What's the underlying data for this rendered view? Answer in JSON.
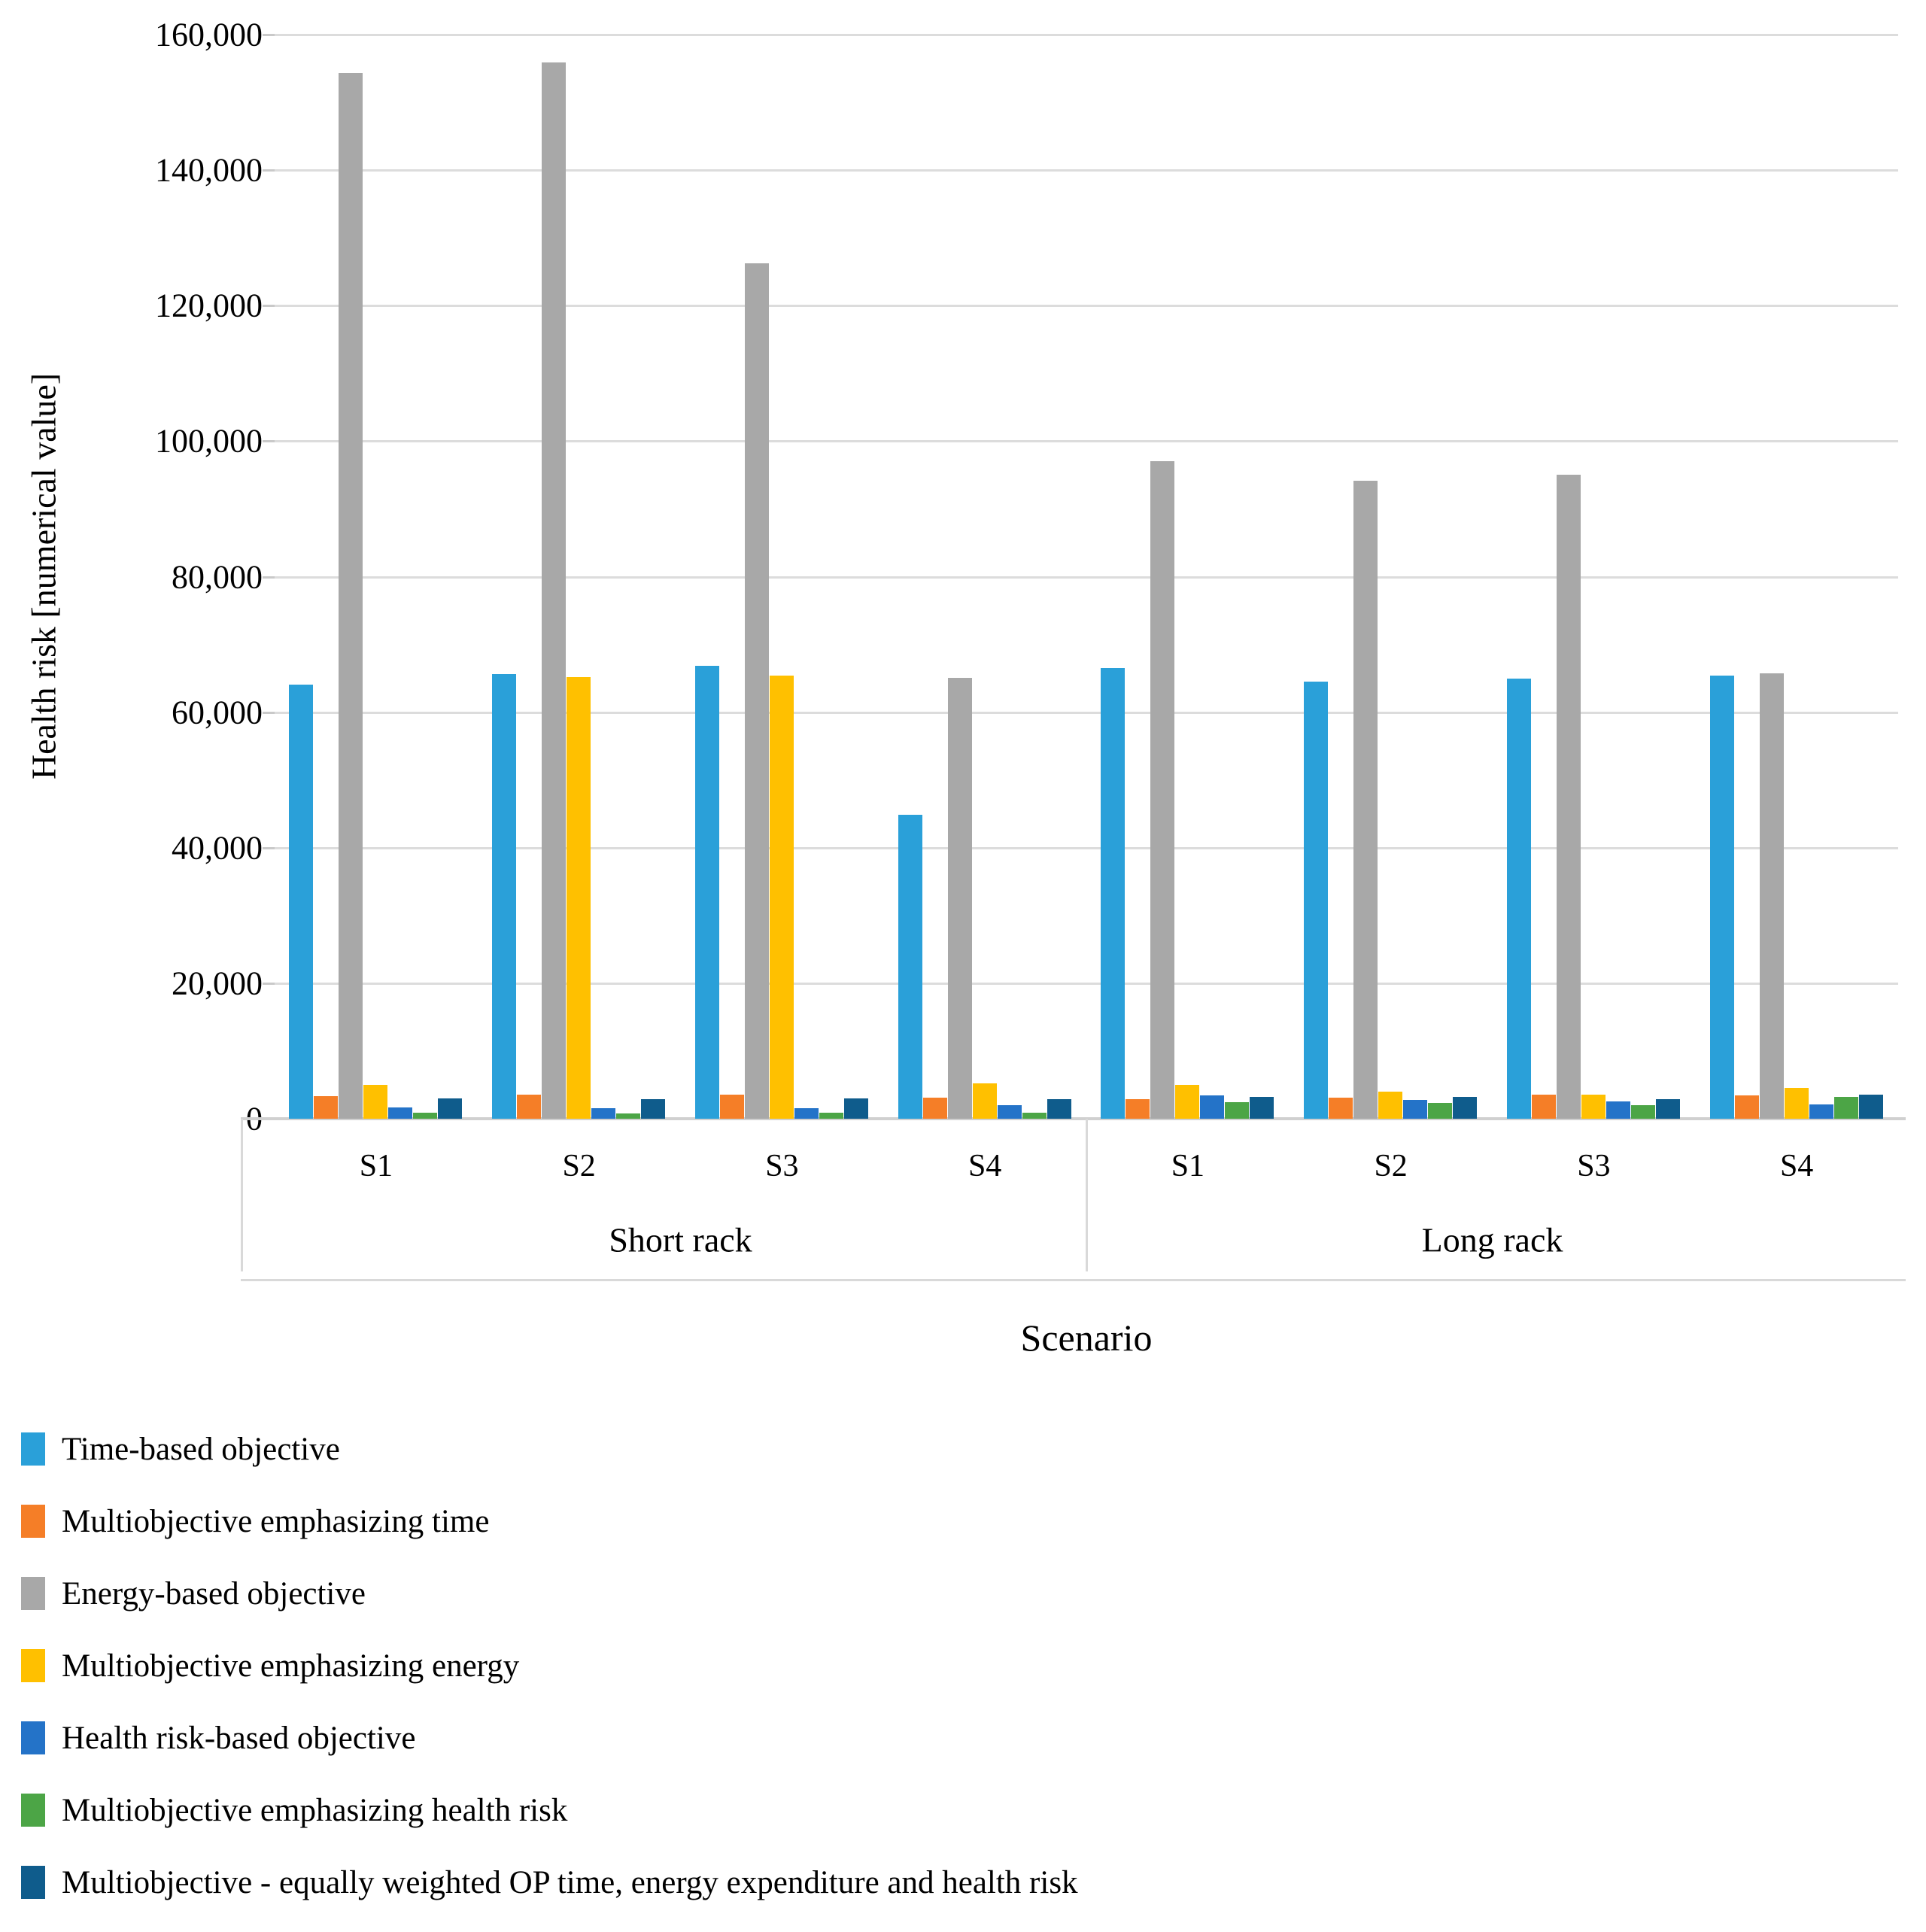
{
  "chart_data": {
    "type": "bar",
    "title": "",
    "xlabel": "Scenario",
    "ylabel": "Health risk [numerical value]",
    "ylim": [
      0,
      160000
    ],
    "ytick_step": 20000,
    "grid": true,
    "legend_position": "bottom-left",
    "group_labels": [
      "S1",
      "S2",
      "S3",
      "S4",
      "S1",
      "S2",
      "S3",
      "S4"
    ],
    "panel_labels": [
      "Short rack",
      "Long rack"
    ],
    "ytick_labels": [
      "0",
      "20,000",
      "40,000",
      "60,000",
      "80,000",
      "100,000",
      "120,000",
      "140,000",
      "160,000"
    ],
    "series": [
      {
        "name": "Time-based objective",
        "color": "#2AA0D9",
        "values": [
          64100,
          65600,
          66800,
          44900,
          66500,
          64500,
          64900,
          65400
        ]
      },
      {
        "name": "Multiobjective emphasizing time",
        "color": "#F57E27",
        "values": [
          3300,
          3500,
          3600,
          3100,
          2900,
          3100,
          3500,
          3400
        ]
      },
      {
        "name": "Energy-based objective",
        "color": "#A8A8A8",
        "values": [
          154300,
          155900,
          126200,
          65100,
          97000,
          94200,
          95000,
          65700
        ]
      },
      {
        "name": "Multiobjective emphasizing energy",
        "color": "#FFC000",
        "values": [
          5000,
          65200,
          65400,
          5200,
          5000,
          4000,
          3500,
          4600
        ]
      },
      {
        "name": "Health risk-based objective",
        "color": "#2473C8",
        "values": [
          1700,
          1500,
          1500,
          2000,
          3400,
          2800,
          2500,
          2100
        ]
      },
      {
        "name": "Multiobjective emphasizing health risk",
        "color": "#4CA546",
        "values": [
          900,
          800,
          900,
          900,
          2400,
          2300,
          2000,
          3200
        ]
      },
      {
        "name": "Multiobjective - equally weighted OP time, energy expenditure and health risk",
        "color": "#0F5C8C",
        "values": [
          3000,
          2900,
          3000,
          2900,
          3200,
          3200,
          2900,
          3500
        ]
      }
    ]
  },
  "colors": {
    "gridline": "#DCDCDC",
    "axis_line": "#D0D0D0",
    "divider": "#D9D9D9",
    "text": "#000000"
  }
}
